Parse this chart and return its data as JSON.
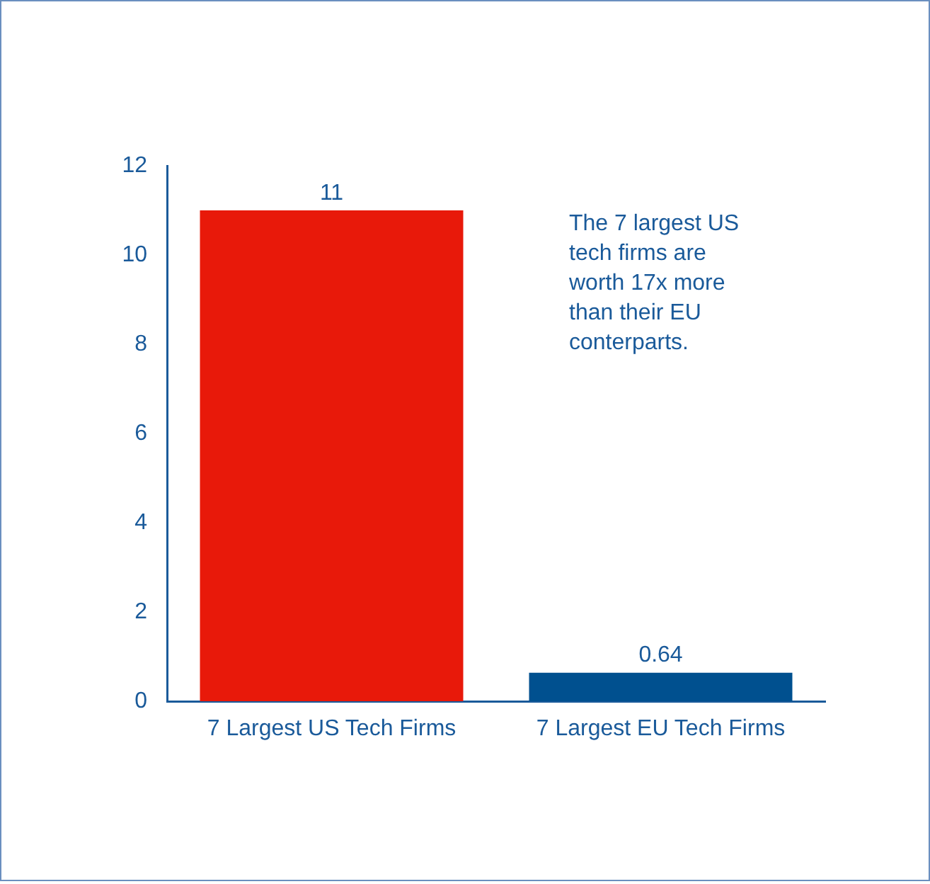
{
  "chart_data": {
    "type": "bar",
    "categories": [
      "7 Largest US Tech Firms",
      "7 Largest EU Tech Firms"
    ],
    "values": [
      11,
      0.64
    ],
    "colors": [
      "#e8190a",
      "#00508f"
    ],
    "ylim": [
      0,
      12
    ],
    "yticks": [
      0,
      2,
      4,
      6,
      8,
      10,
      12
    ],
    "grid": false,
    "legend": false,
    "data_labels": true,
    "annotations": [
      "The 7 largest US tech firms are worth 17x more than their EU conterparts."
    ]
  }
}
